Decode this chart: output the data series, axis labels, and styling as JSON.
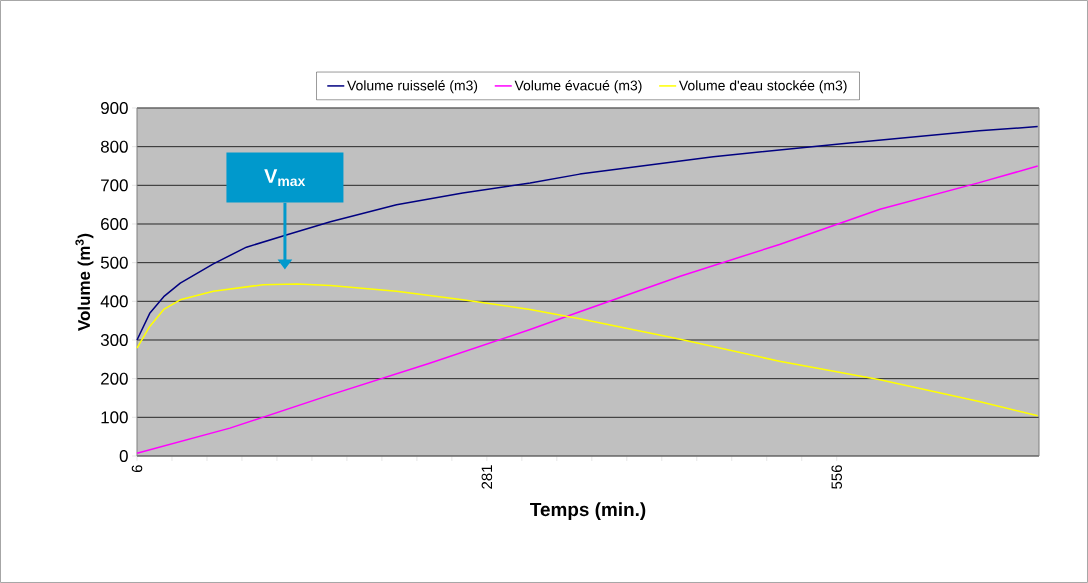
{
  "chart_data": {
    "type": "line",
    "xlabel": "Temps (min.)",
    "ylabel": "Volume (m$^{3}$)",
    "xlim": [
      6,
      715
    ],
    "xticks": [
      6,
      281,
      556
    ],
    "ylim": [
      0,
      900
    ],
    "yticks": [
      0,
      100,
      200,
      300,
      400,
      500,
      600,
      700,
      800,
      900
    ],
    "grid": "y",
    "legend": "top",
    "marker": "none",
    "line_style": "solid",
    "series": [
      {
        "name": "Volume ruisselé (m3)",
        "color": "#000080",
        "x": [
          6,
          16,
          27,
          40,
          66,
          92,
          122,
          158,
          210,
          262,
          315,
          354,
          459,
          564,
          668,
          714
        ],
        "values": [
          300,
          369,
          412,
          447,
          497,
          540,
          570,
          606,
          650,
          680,
          706,
          729,
          774,
          809,
          841,
          852
        ]
      },
      {
        "name": "Volume évacué (m3)",
        "color": "#ff00ff",
        "x": [
          6,
          79,
          158,
          236,
          315,
          354,
          433,
          511,
          590,
          668,
          714
        ],
        "values": [
          7,
          72,
          158,
          240,
          327,
          373,
          465,
          547,
          638,
          707,
          750
        ]
      },
      {
        "name": "Volume d'eau stockée (m3)",
        "color": "#ffff00",
        "x": [
          6,
          16,
          27,
          40,
          66,
          105,
          132,
          158,
          210,
          262,
          315,
          354,
          433,
          511,
          590,
          668,
          714
        ],
        "values": [
          279,
          335,
          379,
          404,
          426,
          443,
          445,
          441,
          426,
          404,
          379,
          355,
          302,
          245,
          197,
          141,
          104
        ]
      }
    ],
    "annotations": [
      "V$_{max}$"
    ]
  }
}
